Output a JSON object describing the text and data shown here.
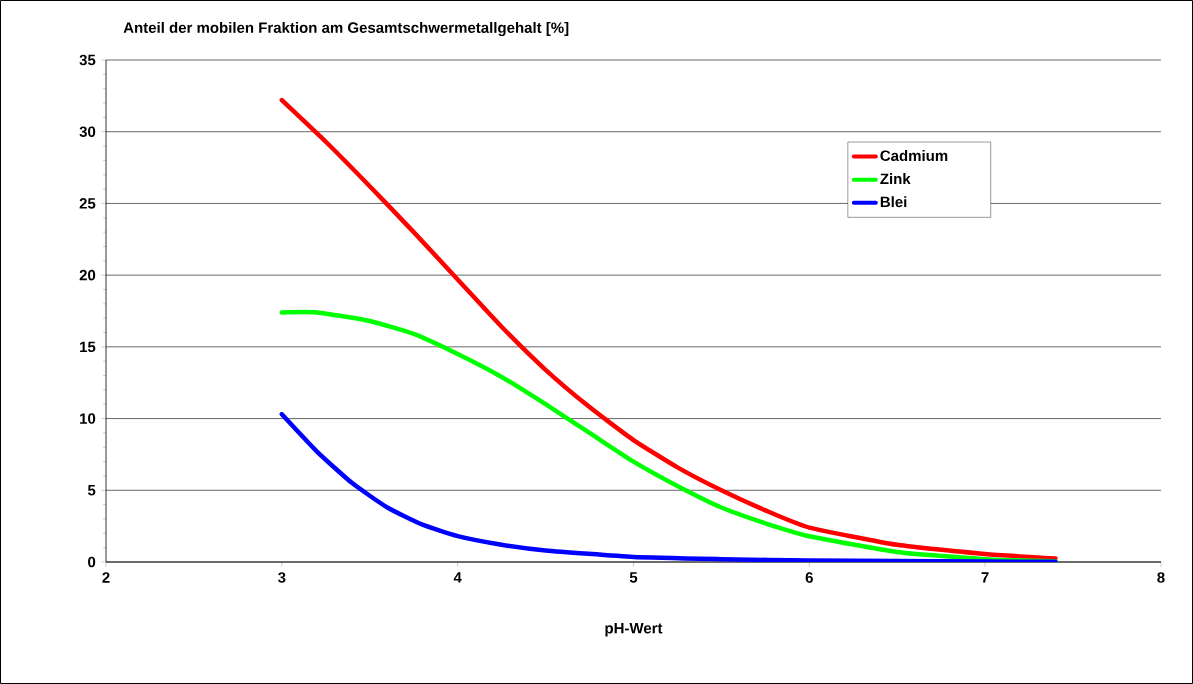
{
  "chart_data": {
    "type": "line",
    "title": "Anteil der mobilen Fraktion am Gesamtschwermetallgehalt [%]",
    "xlabel": "pH-Wert",
    "xlim": [
      2,
      8
    ],
    "xticks": [
      2,
      3,
      4,
      5,
      6,
      7,
      8
    ],
    "ylim": [
      0,
      35
    ],
    "yticks": [
      0,
      5,
      10,
      15,
      20,
      25,
      30,
      35
    ],
    "grid": "y",
    "legend": "top right",
    "marker": "none",
    "line_style": "solid",
    "series": [
      {
        "name": "Cadmium",
        "color": "#ff0000",
        "x": [
          3,
          3.25,
          3.5,
          3.75,
          4,
          4.25,
          4.5,
          4.75,
          5,
          5.25,
          5.5,
          5.75,
          6,
          6.5,
          7,
          7.4
        ],
        "values": [
          32.2,
          29.3,
          26.2,
          23,
          19.7,
          16.4,
          13.4,
          10.8,
          8.5,
          6.6,
          5,
          3.6,
          2.4,
          1.2,
          0.55,
          0.25
        ]
      },
      {
        "name": "Zink",
        "color": "#00ff00",
        "x": [
          3,
          3.2,
          3.5,
          3.75,
          4,
          4.25,
          4.5,
          4.75,
          5,
          5.25,
          5.5,
          5.75,
          6,
          6.5,
          7,
          7.4
        ],
        "values": [
          17.4,
          17.4,
          16.8,
          15.9,
          14.5,
          12.9,
          11,
          9,
          7,
          5.3,
          3.8,
          2.7,
          1.8,
          0.7,
          0.2,
          0.05
        ]
      },
      {
        "name": "Blei",
        "color": "#0000ff",
        "x": [
          3,
          3.2,
          3.4,
          3.6,
          3.8,
          4,
          4.25,
          4.5,
          5,
          5.5,
          6,
          7,
          7.4
        ],
        "values": [
          10.3,
          7.7,
          5.5,
          3.8,
          2.6,
          1.8,
          1.2,
          0.8,
          0.35,
          0.2,
          0.1,
          0.03,
          0.02
        ]
      }
    ]
  }
}
